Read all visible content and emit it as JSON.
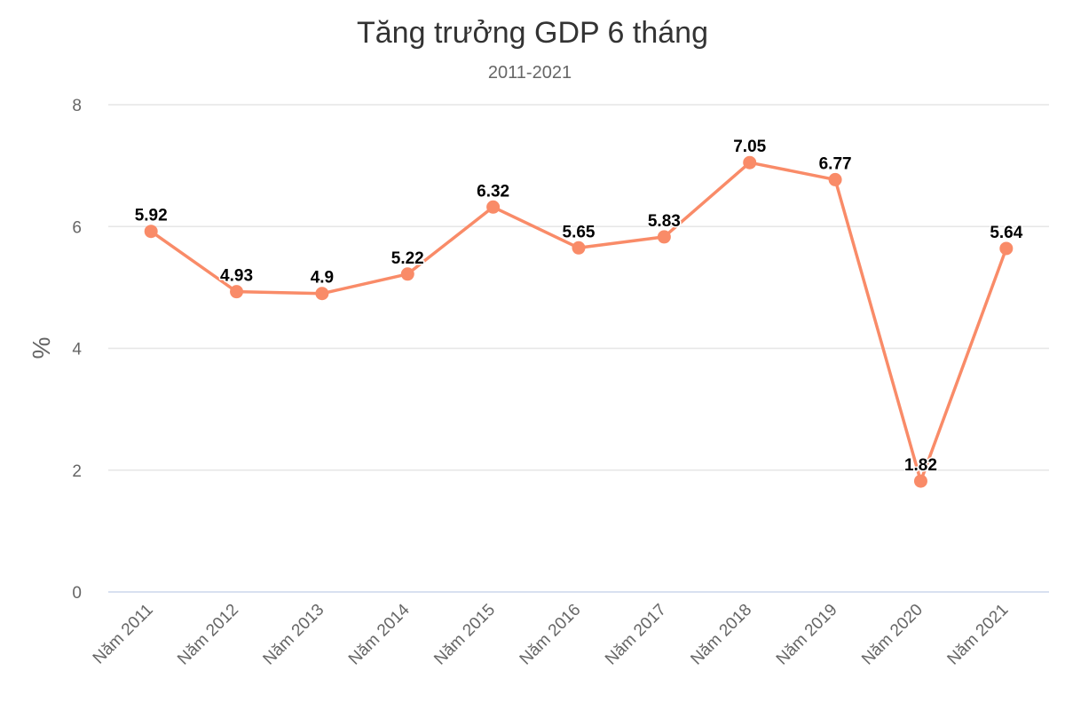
{
  "chart_data": {
    "type": "line",
    "title": "Tăng trưởng GDP 6 tháng",
    "subtitle": "2011-2021",
    "xlabel": "",
    "ylabel": "%",
    "ylim": [
      0,
      8
    ],
    "yticks": [
      0,
      2,
      4,
      6,
      8
    ],
    "grid": true,
    "legend": "none",
    "categories": [
      "Năm 2011",
      "Năm 2012",
      "Năm 2013",
      "Năm 2014",
      "Năm 2015",
      "Năm 2016",
      "Năm 2017",
      "Năm 2018",
      "Năm 2019",
      "Năm 2020",
      "Năm 2021"
    ],
    "series": [
      {
        "values": [
          5.92,
          4.93,
          4.9,
          5.22,
          6.32,
          5.65,
          5.83,
          7.05,
          6.77,
          1.82,
          5.64
        ],
        "color": "#f98b68"
      }
    ]
  }
}
